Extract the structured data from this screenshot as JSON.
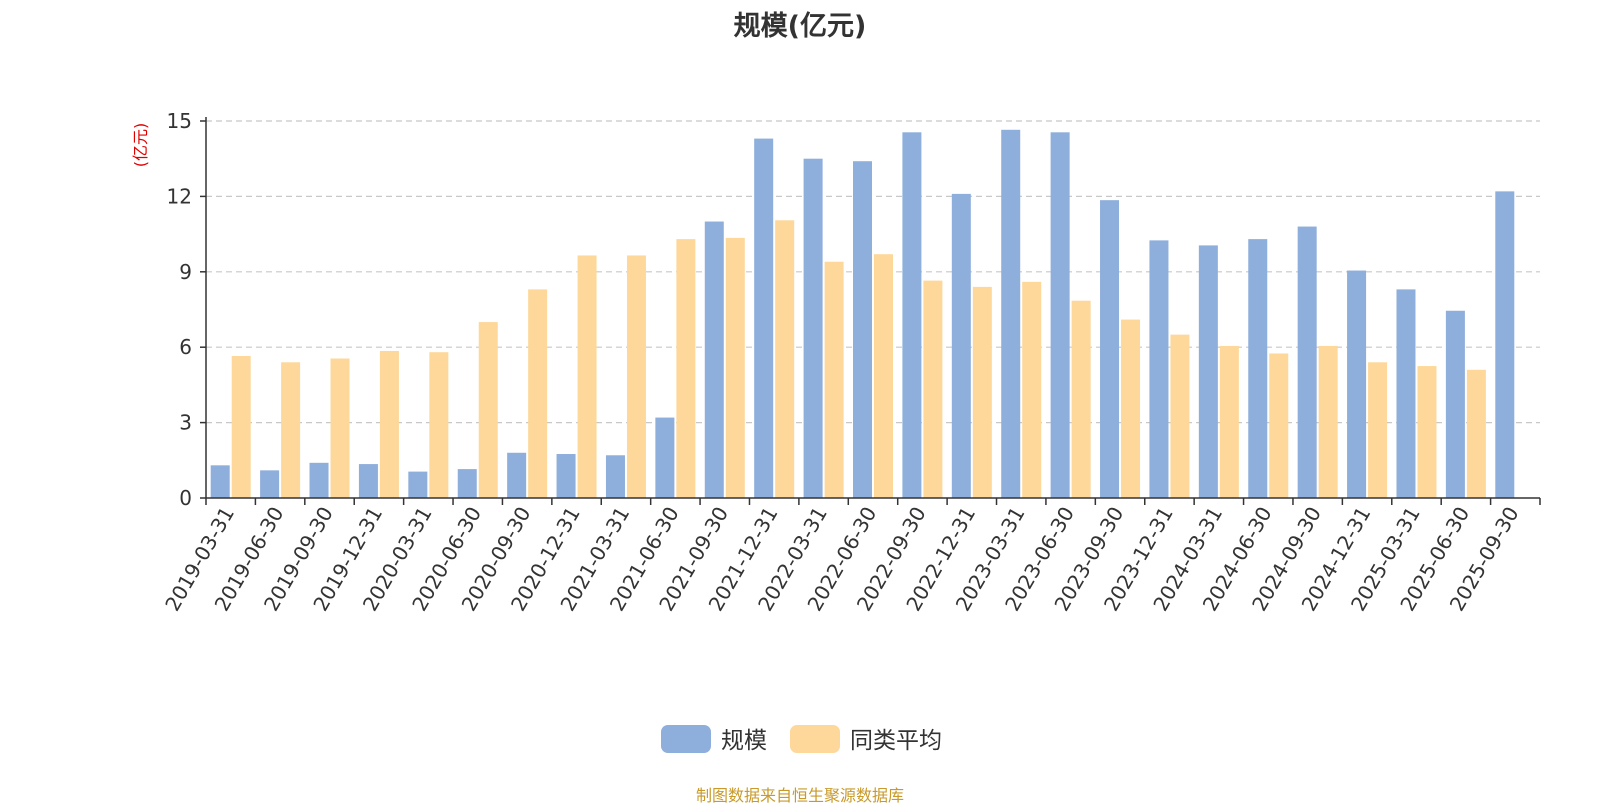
{
  "chart_data": {
    "type": "bar",
    "title": "规模(亿元)",
    "ylabel": "(亿元)",
    "xlabel": "",
    "ylim": [
      0,
      15
    ],
    "yticks": [
      0,
      3,
      6,
      9,
      12,
      15
    ],
    "grid": true,
    "legend_position": "bottom-center",
    "categories": [
      "2019-03-31",
      "2019-06-30",
      "2019-09-30",
      "2019-12-31",
      "2020-03-31",
      "2020-06-30",
      "2020-09-30",
      "2020-12-31",
      "2021-03-31",
      "2021-06-30",
      "2021-09-30",
      "2021-12-31",
      "2022-03-31",
      "2022-06-30",
      "2022-09-30",
      "2022-12-31",
      "2023-03-31",
      "2023-06-30",
      "2023-09-30",
      "2023-12-31",
      "2024-03-31",
      "2024-06-30",
      "2024-09-30",
      "2024-12-31",
      "2025-03-31",
      "2025-06-30",
      "2025-09-30"
    ],
    "series": [
      {
        "name": "规模",
        "color": "#8eaedb",
        "values": [
          1.3,
          1.1,
          1.4,
          1.35,
          1.05,
          1.15,
          1.8,
          1.75,
          1.7,
          3.2,
          11.0,
          14.3,
          13.5,
          13.4,
          14.55,
          12.1,
          14.65,
          14.55,
          11.85,
          10.25,
          10.05,
          10.3,
          10.8,
          9.05,
          8.3,
          7.45,
          12.2
        ]
      },
      {
        "name": "同类平均",
        "color": "#fdd89a",
        "values": [
          5.65,
          5.4,
          5.55,
          5.85,
          5.8,
          7.0,
          8.3,
          9.65,
          9.65,
          10.3,
          10.35,
          11.05,
          9.4,
          9.7,
          8.65,
          8.4,
          8.6,
          7.85,
          7.1,
          6.5,
          6.05,
          5.75,
          6.05,
          5.4,
          5.25,
          5.1,
          null
        ]
      }
    ]
  },
  "footer": {
    "source": "制图数据来自恒生聚源数据库"
  }
}
